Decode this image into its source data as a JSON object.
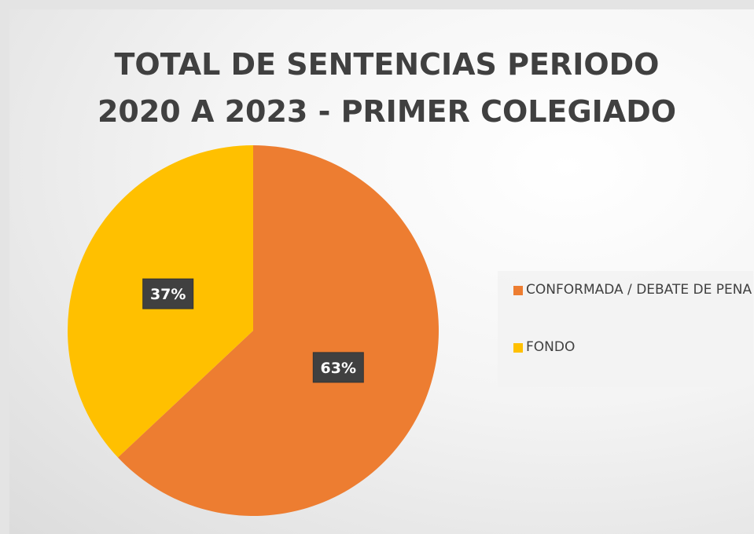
{
  "chart_data": {
    "type": "pie",
    "title": "TOTAL DE SENTENCIAS PERIODO 2020 A 2023 - PRIMER COLEGIADO",
    "categories": [
      "CONFORMADA / DEBATE DE PENA",
      "FONDO"
    ],
    "values": [
      63,
      37
    ],
    "value_labels": [
      "63%",
      "37%"
    ],
    "colors": [
      "#ed7d31",
      "#ffc000"
    ],
    "legend": "right"
  }
}
